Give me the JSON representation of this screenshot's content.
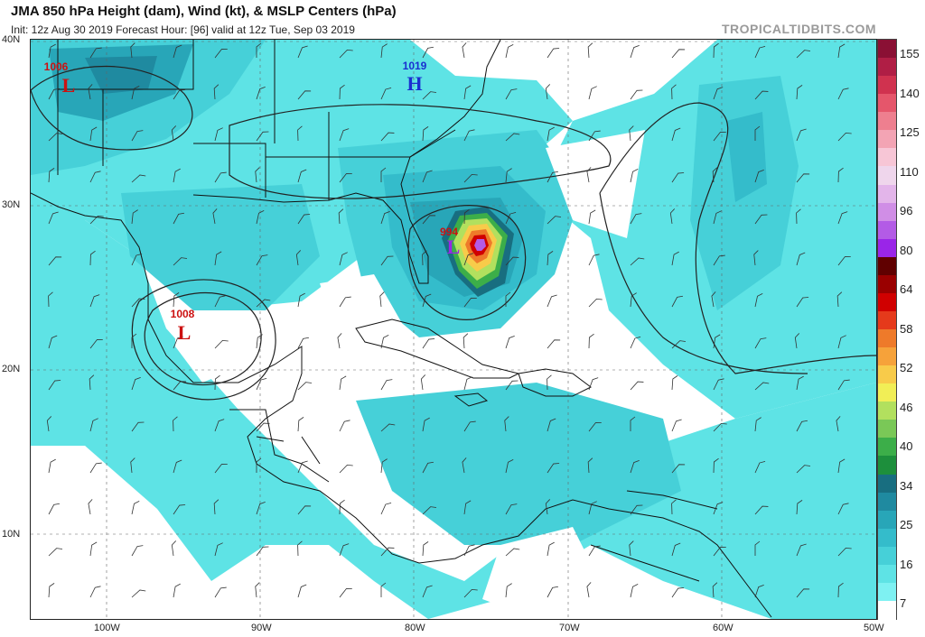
{
  "header": {
    "title": "JMA 850 hPa Height (dam), Wind (kt), & MSLP Centers (hPa)",
    "subtitle": "Init: 12z Aug 30 2019   Forecast Hour: [96]   valid at 12z Tue, Sep 03 2019",
    "brand": "TROPICALTIDBITS.COM"
  },
  "axes": {
    "lat_labels": [
      "40N",
      "30N",
      "20N",
      "10N"
    ],
    "lon_labels": [
      "100W",
      "90W",
      "80W",
      "70W",
      "60W",
      "50W"
    ]
  },
  "pressure_centers": [
    {
      "value": "1006",
      "letter": "L",
      "color": "#cc1111"
    },
    {
      "value": "1019",
      "letter": "H",
      "color": "#1a2fd0"
    },
    {
      "value": "994",
      "letter": "L",
      "color": "#cc1111"
    },
    {
      "value": "1008",
      "letter": "L",
      "color": "#cc1111"
    }
  ],
  "colorbar": {
    "labels": [
      "155",
      "140",
      "125",
      "110",
      "96",
      "80",
      "64",
      "58",
      "52",
      "46",
      "40",
      "34",
      "25",
      "16",
      "7"
    ],
    "colors": [
      "#8a1034",
      "#b01e45",
      "#d0324f",
      "#e5566b",
      "#ee7f8f",
      "#f3a4b4",
      "#f7c6d6",
      "#efd6ec",
      "#e3b5ea",
      "#d08ee6",
      "#b35be6",
      "#9a25e8",
      "#600000",
      "#9a0000",
      "#d00000",
      "#e53a1b",
      "#ee7a2a",
      "#f6a23a",
      "#f8cb4a",
      "#f1ee56",
      "#b2e05e",
      "#7ac857",
      "#3cae49",
      "#1d8f3c",
      "#186e80",
      "#1f8aa0",
      "#28a6b8",
      "#34bccb",
      "#46d0d8",
      "#5ee3e5",
      "#7ef1f2",
      "#ffffff"
    ]
  }
}
